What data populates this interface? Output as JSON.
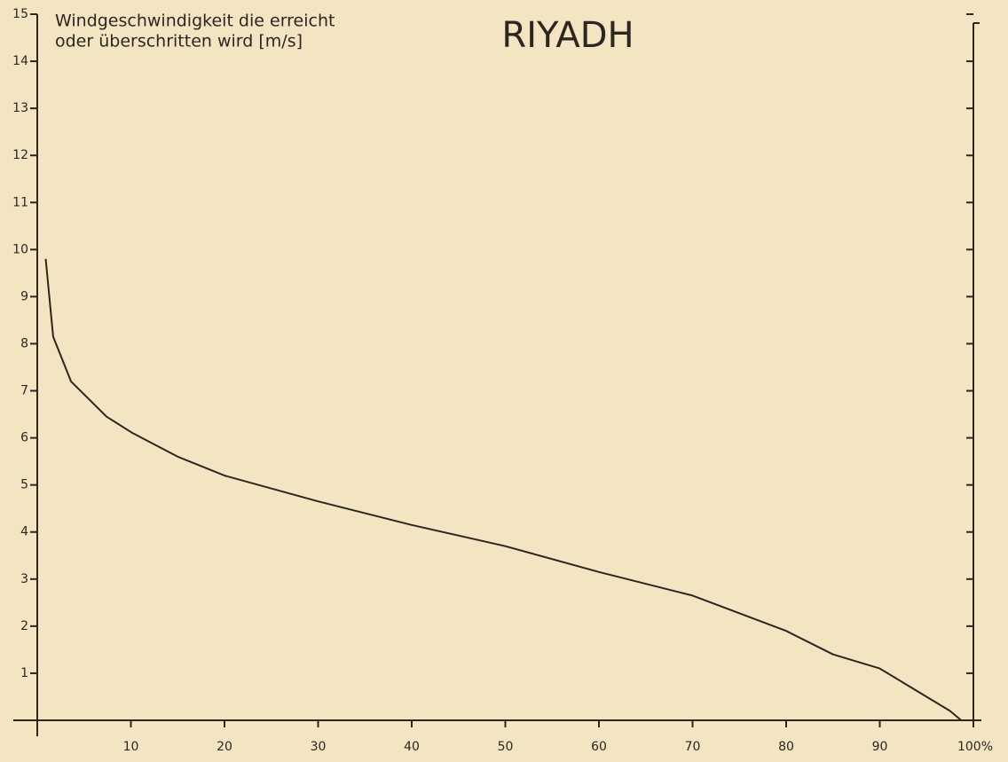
{
  "chart_data": {
    "type": "line",
    "title": "RIYADH",
    "ylabel_lines": [
      "Windgeschwindigkeit die erreicht",
      "oder überschritten wird [m/s]"
    ],
    "xlim": [
      0,
      100
    ],
    "xticks": [
      10,
      20,
      30,
      40,
      50,
      60,
      70,
      80,
      90,
      {
        "value": 100,
        "label": "100%"
      }
    ],
    "ylim": [
      0,
      15
    ],
    "yticks": [
      1,
      2,
      3,
      4,
      5,
      6,
      7,
      8,
      9,
      10,
      11,
      12,
      13,
      14,
      15
    ],
    "grid": false,
    "series": [
      {
        "color": "#2b2620",
        "x": [
          0.9,
          1.7,
          3.6,
          7.4,
          10.2,
          15,
          20,
          30,
          40,
          50,
          60,
          70,
          80,
          85,
          90,
          95,
          97.5,
          98.7
        ],
        "values": [
          9.8,
          8.15,
          7.2,
          6.45,
          6.1,
          5.6,
          5.2,
          4.65,
          4.15,
          3.7,
          3.15,
          2.65,
          1.9,
          1.4,
          1.1,
          0.5,
          0.2,
          0
        ]
      }
    ]
  }
}
